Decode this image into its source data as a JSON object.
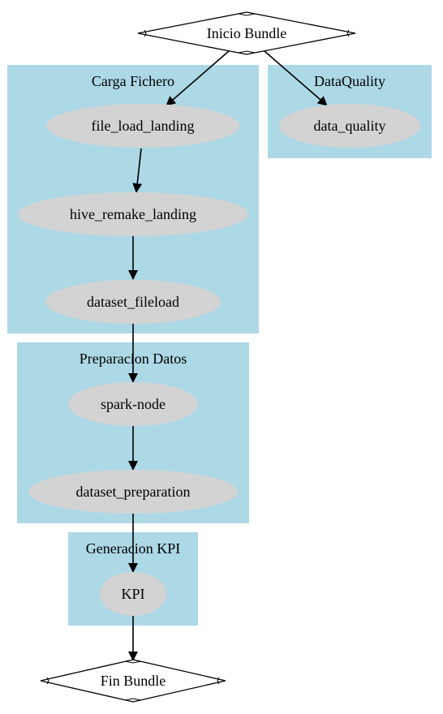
{
  "colors": {
    "cluster_fill": "#add8e6",
    "node_fill": "#d3d3d3",
    "edge": "#000000",
    "diamond_fill": "#ffffff"
  },
  "clusters": {
    "carga": "Carga Fichero",
    "dataquality": "DataQuality",
    "preparacion": "Preparacion Datos",
    "generacion": "Generacion KPI"
  },
  "nodes": {
    "inicio": "Inicio Bundle",
    "file_load_landing": "file_load_landing",
    "hive_remake_landing": "hive_remake_landing",
    "dataset_fileload": "dataset_fileload",
    "data_quality": "data_quality",
    "spark_node": "spark-node",
    "dataset_preparation": "dataset_preparation",
    "kpi": "KPI",
    "fin": "Fin Bundle"
  }
}
